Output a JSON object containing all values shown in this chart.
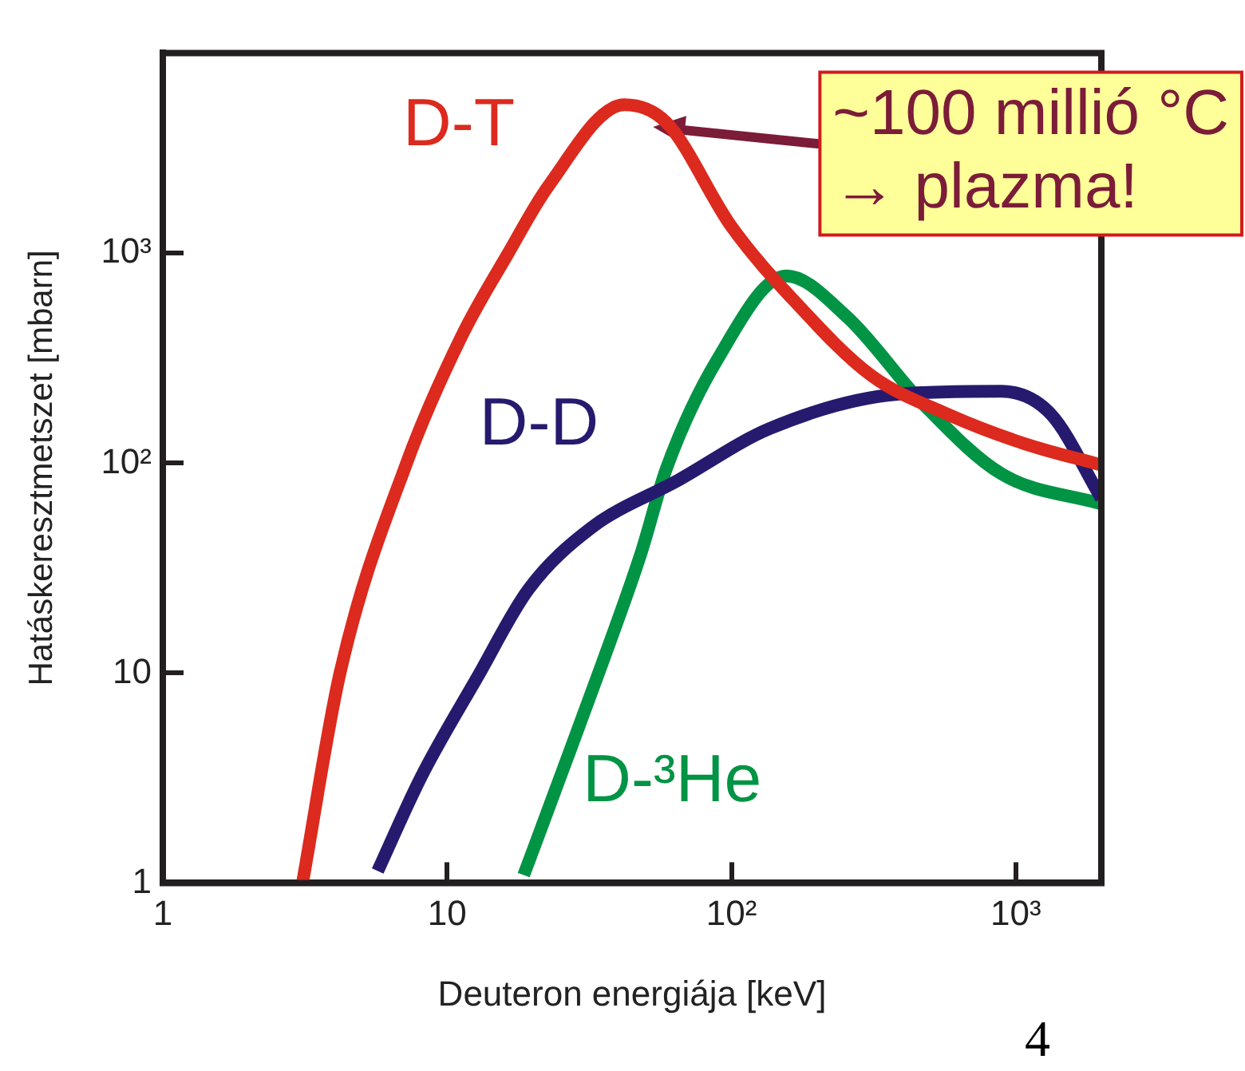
{
  "chart_data": {
    "type": "line",
    "xlabel": "Deuteron energiája [keV]",
    "ylabel": "Hatáskeresztmetszet [mbarn]",
    "log": "xy",
    "grid": false,
    "legend": false,
    "marker": "none",
    "line_style": "solid",
    "xlim": [
      1,
      2000
    ],
    "xticks": [
      1,
      10,
      {
        "value": 100,
        "label": "10²"
      },
      {
        "value": 1000,
        "label": "10³"
      }
    ],
    "ylim": [
      1,
      9000
    ],
    "yticks": [
      1,
      10,
      {
        "value": 100,
        "label": "10²"
      },
      {
        "value": 1000,
        "label": "10³"
      }
    ],
    "series": [
      {
        "name": "D-T",
        "color": "#dc2a1e",
        "x": [
          3.1,
          4.2,
          7.2,
          11.3,
          16.4,
          22.7,
          42,
          59,
          100,
          167,
          310,
          576,
          1070,
          2000
        ],
        "values": [
          1,
          10,
          100,
          408,
          1000,
          2090,
          5100,
          4200,
          1340,
          590,
          262,
          171,
          124,
          98
        ]
      },
      {
        "name": "D-D",
        "color": "#261a6e",
        "x": [
          5.7,
          8.1,
          12.8,
          19.3,
          32,
          65,
          136,
          383,
          890,
          1330,
          2000
        ],
        "values": [
          1.14,
          3.2,
          9.6,
          25,
          49,
          83,
          146,
          213,
          220,
          171,
          68
        ]
      },
      {
        "name": "D-³He",
        "color": "#009444",
        "x": [
          18.6,
          25,
          35,
          48,
          59,
          89,
          156,
          254,
          475,
          890,
          2000
        ],
        "values": [
          1.09,
          3.2,
          11,
          37,
          94,
          310,
          780,
          500,
          190,
          89,
          64
        ]
      }
    ],
    "annotations": [
      {
        "text": "~100 millió °C\n→ plazma!",
        "x": 53,
        "y": 4000
      },
      "4"
    ]
  }
}
